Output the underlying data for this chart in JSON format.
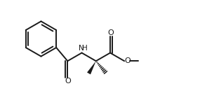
{
  "bg_color": "#ffffff",
  "line_color": "#1a1a1a",
  "line_width": 1.4,
  "figsize": [
    2.85,
    1.33
  ],
  "dpi": 100,
  "xlim": [
    0,
    10
  ],
  "ylim": [
    0,
    4.67
  ]
}
